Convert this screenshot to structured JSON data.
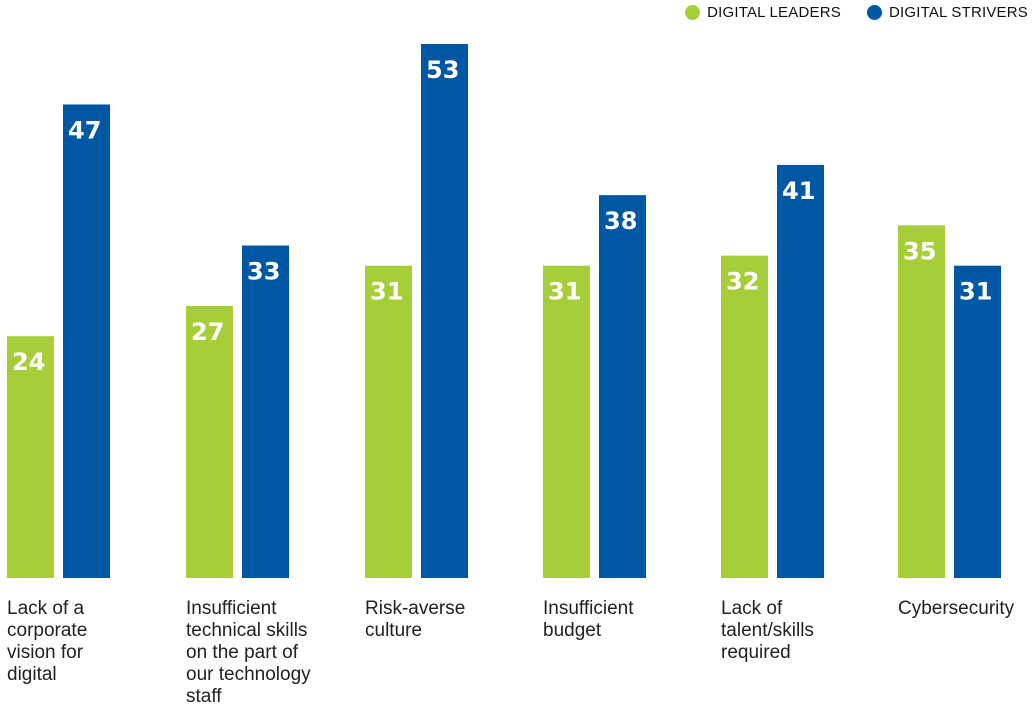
{
  "legend": [
    {
      "label": "DIGITAL LEADERS",
      "color": "#a6ce39"
    },
    {
      "label": "DIGITAL STRIVERS",
      "color": "#0057a3"
    }
  ],
  "chart_data": {
    "type": "bar",
    "categories": [
      "Lack of a corporate vision for digital",
      "Insufficient technical skills on the part of our technology staff",
      "Risk-averse culture",
      "Insufficient budget",
      "Lack of talent/skills required",
      "Cybersecurity"
    ],
    "series": [
      {
        "name": "DIGITAL LEADERS",
        "color": "#a6ce39",
        "values": [
          24,
          27,
          31,
          31,
          32,
          35
        ]
      },
      {
        "name": "DIGITAL STRIVERS",
        "color": "#0057a3",
        "values": [
          47,
          33,
          53,
          38,
          41,
          31
        ]
      }
    ],
    "ylim": [
      0,
      53
    ],
    "grid": false,
    "legend_position": "top-right",
    "title": "",
    "xlabel": "",
    "ylabel": ""
  },
  "category_lines": [
    [
      "Lack of a",
      "corporate",
      "vision for",
      "digital"
    ],
    [
      "Insufficient",
      "technical skills",
      "on the part of",
      "our technology",
      "staff"
    ],
    [
      "Risk-averse",
      "culture"
    ],
    [
      "Insufficient",
      "budget"
    ],
    [
      "Lack of",
      "talent/skills",
      "required"
    ],
    [
      "Cybersecurity"
    ]
  ]
}
